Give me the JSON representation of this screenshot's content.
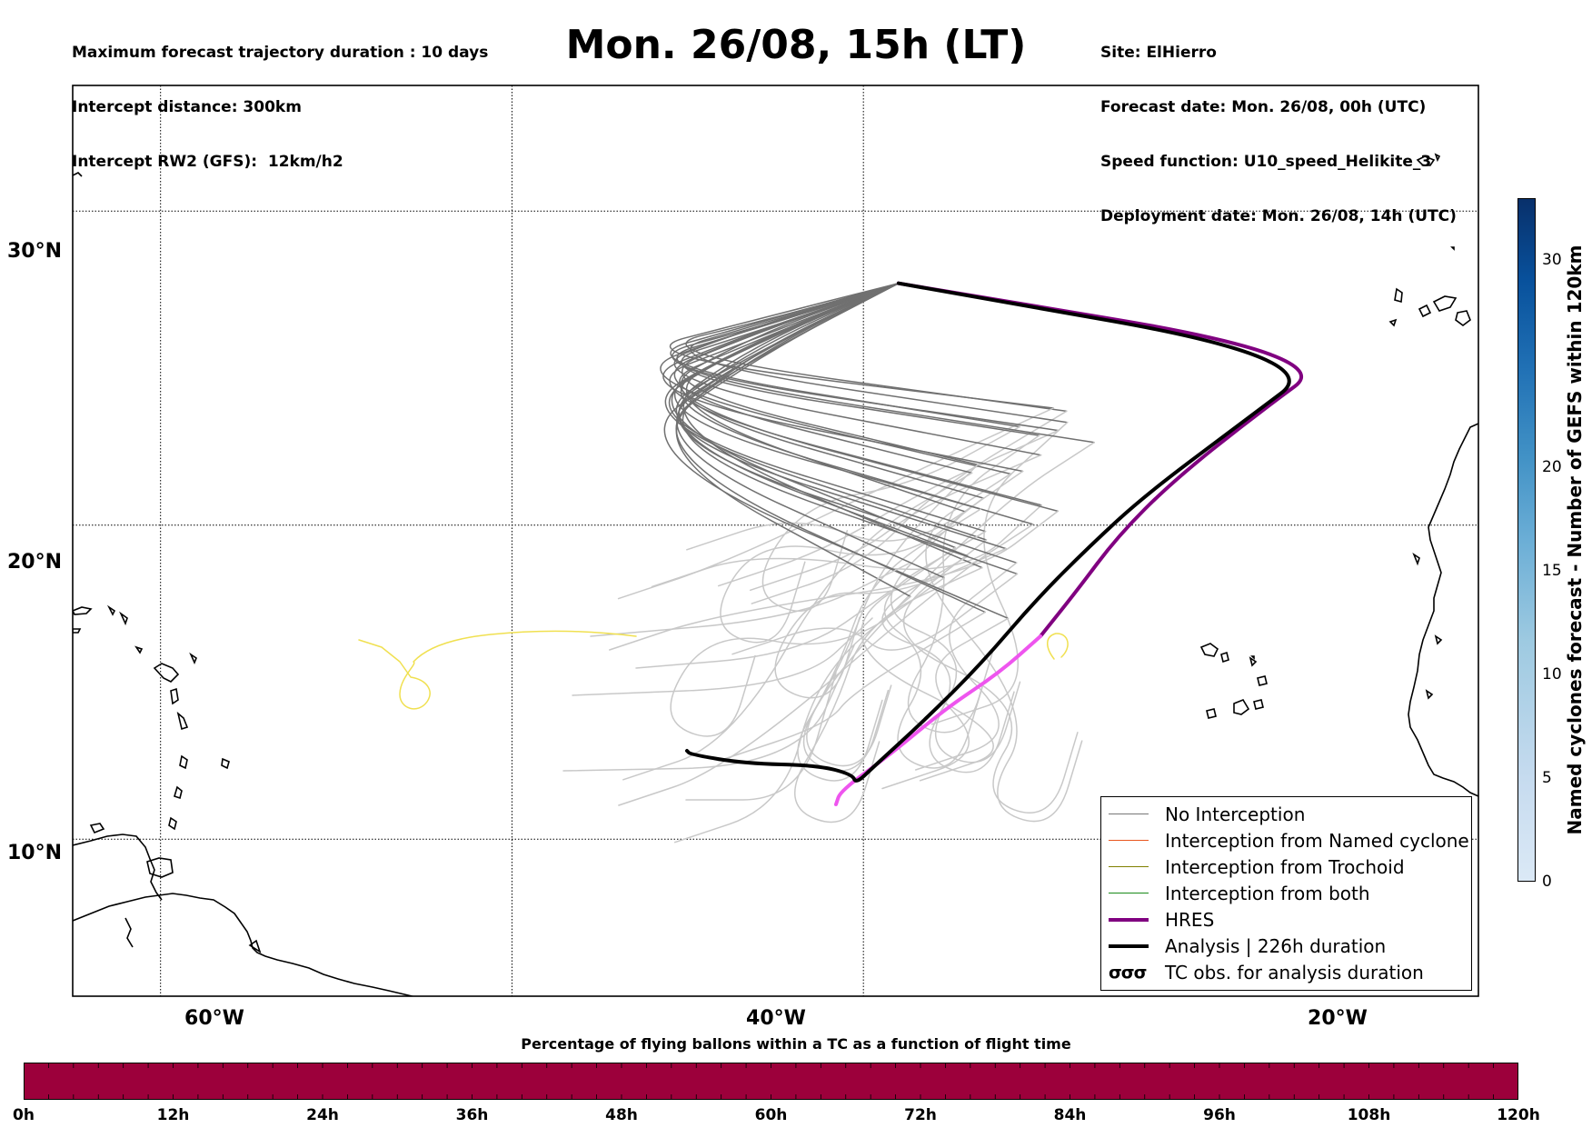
{
  "header": {
    "left": [
      "Maximum forecast trajectory duration : 10 days",
      "Intercept distance: 300km",
      "Intercept RW2 (GFS):  12km/h2"
    ],
    "title": "Mon. 26/08, 15h (LT)",
    "right": [
      "Site: ElHierro",
      "Forecast date: Mon. 26/08, 00h (UTC)",
      "Speed function: U10_speed_Helikite_3",
      "Deployment date: Mon. 26/08, 14h (UTC)"
    ]
  },
  "map": {
    "lon_range": [
      -65,
      15
    ],
    "lat_range": [
      5,
      34
    ],
    "lon_gridlines": [
      -60,
      -40,
      -20
    ],
    "lat_gridlines": [
      10,
      20,
      30
    ],
    "x_tick_labels": [
      "60°W",
      "40°W",
      "20°W"
    ],
    "y_tick_labels": [
      "30°N",
      "20°N",
      "10°N"
    ],
    "deployment_site": {
      "lon": -18,
      "lat": 27.7
    },
    "tracks": {
      "hres": {
        "color": "#800080",
        "late_color": "#ee55ee"
      },
      "analysis": {
        "color": "#000000"
      },
      "yellow": {
        "color": "#f0e050"
      }
    }
  },
  "legend": {
    "items": [
      {
        "label": "No Interception",
        "color": "#777777",
        "width": 1.5
      },
      {
        "label": "Interception from Named cyclone",
        "color": "#e8561e",
        "width": 1.5
      },
      {
        "label": "Interception from Trochoid",
        "color": "#808000",
        "width": 1.5
      },
      {
        "label": "Interception from both",
        "color": "#1a8a1a",
        "width": 1.5
      },
      {
        "label": "HRES",
        "color": "#800080",
        "width": 4
      },
      {
        "label": "Analysis | 226h duration",
        "color": "#000000",
        "width": 4
      }
    ],
    "tc_obs_symbol": "σσσ",
    "tc_obs_label": "TC obs. for analysis duration"
  },
  "colorbar_right": {
    "label": "Named cyclones forecast - Number of GEFS within 120km",
    "ticks": [
      "0",
      "5",
      "10",
      "15",
      "20",
      "30"
    ],
    "tick_values": [
      0,
      5,
      10,
      15,
      20,
      30
    ],
    "max": 33
  },
  "bottom_bar": {
    "title": "Percentage of flying ballons within a TC as a function of flight time",
    "color": "#9c003b",
    "ticks": [
      "0h",
      "12h",
      "24h",
      "36h",
      "48h",
      "60h",
      "72h",
      "84h",
      "96h",
      "108h",
      "120h"
    ]
  }
}
